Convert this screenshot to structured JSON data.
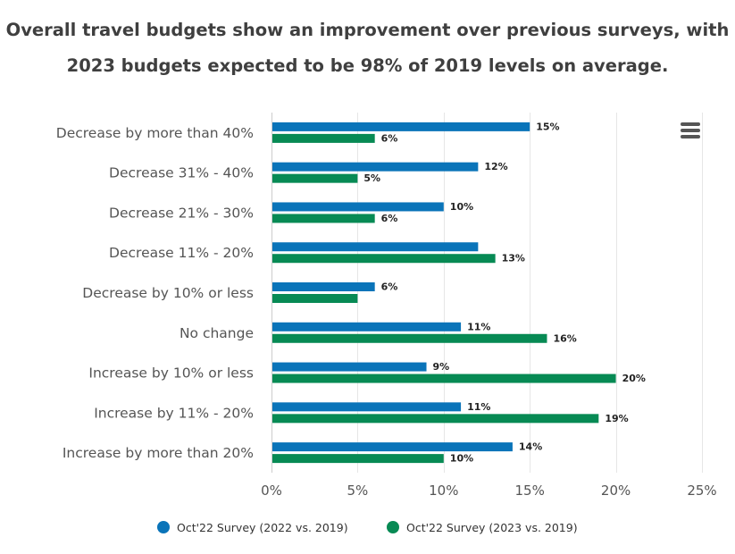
{
  "title": {
    "line1": "Overall travel budgets show an improvement over previous surveys, with",
    "line2": "2023 budgets expected to be 98% of 2019 levels on average."
  },
  "menu": {
    "icon": "hamburger-menu-icon"
  },
  "chart_data": {
    "type": "bar",
    "orientation": "horizontal",
    "categories": [
      "Decrease by more than 40%",
      "Decrease 31% - 40%",
      "Decrease 21% - 30%",
      "Decrease 11% - 20%",
      "Decrease by 10% or less",
      "No change",
      "Increase by 10% or less",
      "Increase by 11% - 20%",
      "Increase by more than 20%"
    ],
    "series": [
      {
        "name": "Oct'22 Survey (2022 vs. 2019)",
        "color": "#0a74b9",
        "values": [
          15,
          12,
          10,
          12,
          6,
          11,
          9,
          11,
          14
        ],
        "labels": [
          "15%",
          "12%",
          "10%",
          "",
          "6%",
          "11%",
          "9%",
          "11%",
          "14%"
        ]
      },
      {
        "name": "Oct'22 Survey (2023 vs. 2019)",
        "color": "#078a54",
        "values": [
          6,
          5,
          6,
          13,
          5,
          16,
          20,
          19,
          10
        ],
        "labels": [
          "6%",
          "5%",
          "6%",
          "13%",
          "",
          "16%",
          "20%",
          "19%",
          "10%"
        ]
      }
    ],
    "xlim": [
      0,
      25
    ],
    "xticks": [
      0,
      5,
      10,
      15,
      20,
      25
    ],
    "xtick_labels": [
      "0%",
      "5%",
      "10%",
      "15%",
      "20%",
      "25%"
    ],
    "grid": true,
    "legend_position": "bottom-center"
  }
}
